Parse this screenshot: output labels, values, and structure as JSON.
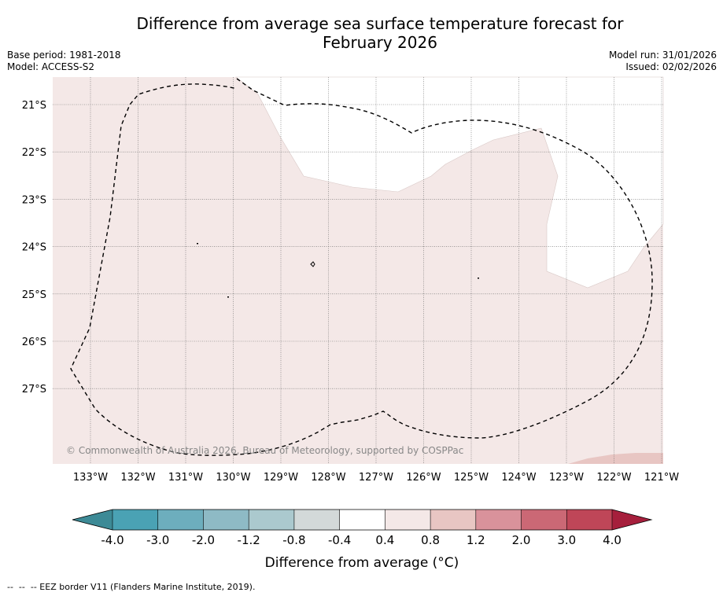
{
  "title": {
    "line1": "Difference from average sea surface temperature forecast for",
    "line2": "February 2026"
  },
  "meta": {
    "base_period": "Base period: 1981-2018",
    "model": "Model: ACCESS-S2",
    "model_run": "Model run: 31/01/2026",
    "issued": "Issued: 02/02/2026"
  },
  "map": {
    "latitude_labels": [
      "21°S",
      "22°S",
      "23°S",
      "24°S",
      "25°S",
      "26°S",
      "27°S"
    ],
    "longitude_labels": [
      "133°W",
      "132°W",
      "131°W",
      "130°W",
      "129°W",
      "128°W",
      "127°W",
      "126°W",
      "125°W",
      "124°W",
      "123°W",
      "122°W",
      "121°W"
    ],
    "copyright": "© Commonwealth of Australia 2026, Bureau of Meteorology, supported by COSPPac",
    "colors": {
      "anomaly_0p4_0p8": "#f4e8e7",
      "anomaly_0p8_1p2": "#e8c6c3",
      "neutral": "#ffffff",
      "eez_border": "#000000"
    }
  },
  "colorbar": {
    "tick_labels": [
      "-4.0",
      "-3.0",
      "-2.0",
      "-1.2",
      "-0.8",
      "-0.4",
      "0.4",
      "0.8",
      "1.2",
      "2.0",
      "3.0",
      "4.0"
    ],
    "segment_colors": [
      "#4aa2b4",
      "#6daebd",
      "#8ebac5",
      "#abc9ce",
      "#d3d9d9",
      "#ffffff",
      "#f4e8e7",
      "#e8c6c3",
      "#d9929b",
      "#cb6875",
      "#bf4658"
    ],
    "under_color": "#3d8a96",
    "over_color": "#a61f3c",
    "label": "Difference from average (°C)"
  },
  "footer": {
    "legend_text": "--  --  -- EEZ border V11 (Flanders Marine Institute, 2019)."
  }
}
